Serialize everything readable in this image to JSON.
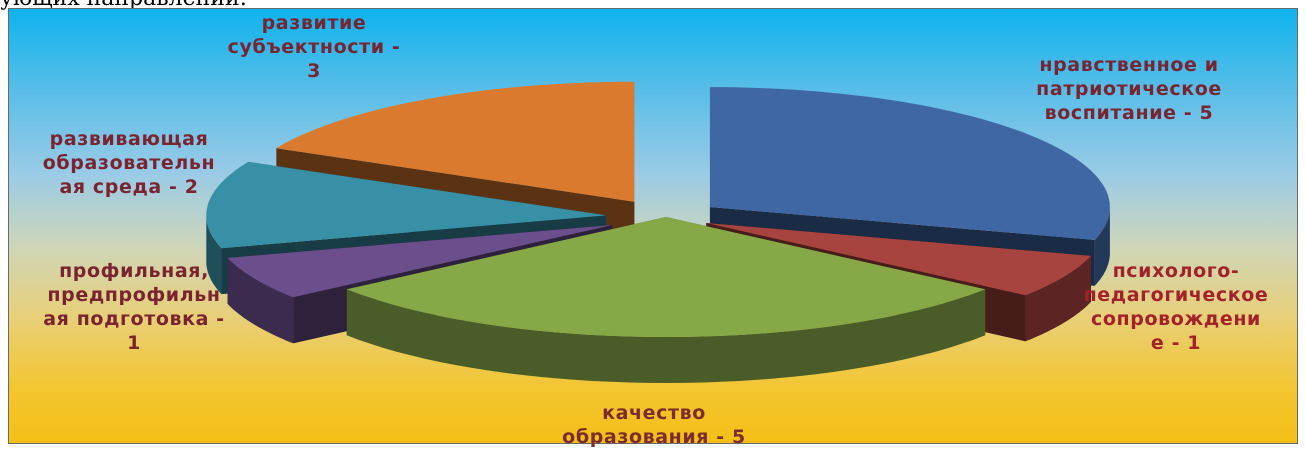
{
  "page_fragment": "ующих направлений:",
  "colors": {
    "blue": "#3f67a4",
    "red": "#a8443f",
    "green": "#86a847",
    "purple": "#6b4f8d",
    "teal": "#3890a6",
    "orange": "#d97a2e",
    "label": "#7a2430"
  },
  "chart_data": {
    "type": "pie",
    "style": "3d-exploded",
    "title": "",
    "legend": "none",
    "slices": [
      {
        "label": "нравственное и патриотическое воспитание",
        "value": 5,
        "color": "#3f67a4",
        "label_lines": [
          "нравственное и",
          "патриотическое",
          "воспитание - 5"
        ]
      },
      {
        "label": "психолого-педагогическое сопровождение",
        "value": 1,
        "color": "#a8443f",
        "label_lines": [
          "психолого-",
          "педагогическое",
          "сопровождени",
          "е - 1"
        ]
      },
      {
        "label": "качество образования",
        "value": 5,
        "color": "#86a847",
        "label_lines": [
          "качество",
          "образования - 5"
        ]
      },
      {
        "label": "профильная, предпрофильная подготовка",
        "value": 1,
        "color": "#6b4f8d",
        "label_lines": [
          "профильная,",
          "предпрофильн",
          "ая подготовка -",
          "1"
        ]
      },
      {
        "label": "развивающая образовательная среда",
        "value": 2,
        "color": "#3890a6",
        "label_lines": [
          "развивающая",
          "образовательн",
          "ая среда  - 2"
        ]
      },
      {
        "label": "развитие субъектности",
        "value": 3,
        "color": "#d97a2e",
        "label_lines": [
          "развитие",
          "субъектности -",
          "3"
        ]
      }
    ]
  }
}
